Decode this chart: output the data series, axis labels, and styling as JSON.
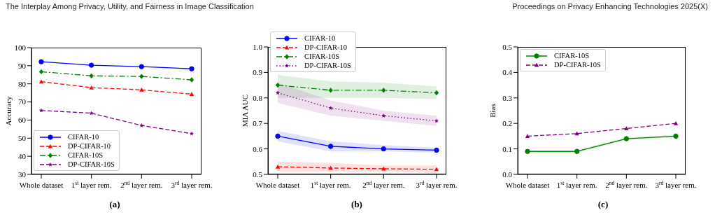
{
  "chart_data": [
    {
      "type": "line",
      "categories": [
        "Whole dataset",
        "1$^{st}$ layer rem.",
        "2$^{nd}$ layer rem.",
        "3$^{rd}$ layer rem."
      ],
      "ylabel": "Accuracy",
      "ylim": [
        30,
        100
      ],
      "yticks": [
        30,
        40,
        50,
        60,
        70,
        80,
        90,
        100
      ],
      "grid": false,
      "legend": "bottom left",
      "annotations": [
        "The Interplay Among Privacy, Utility, and Fairness in Image Classification",
        "(a)"
      ],
      "series": [
        {
          "name": "CIFAR-10",
          "color": "#0000ff",
          "values": [
            92.2,
            90.3,
            89.5,
            88.3
          ],
          "marker": "circle",
          "line_style": "solid"
        },
        {
          "name": "DP-CIFAR-10",
          "color": "#ff0000",
          "values": [
            81.2,
            77.9,
            76.7,
            74.3
          ],
          "marker": "triangle",
          "line_style": "dashed"
        },
        {
          "name": "CIFAR-10S",
          "color": "#008000",
          "values": [
            86.7,
            84.4,
            84.1,
            82.2
          ],
          "marker": "diamond",
          "line_style": "dashdot"
        },
        {
          "name": "DP-CIFAR-10S",
          "color": "#800080",
          "values": [
            65.3,
            63.8,
            57,
            52.5
          ],
          "marker": "star",
          "line_style": "dashed"
        }
      ]
    },
    {
      "type": "line",
      "categories": [
        "Whole dataset",
        "1$^{st}$ layer rem.",
        "2$^{nd}$ layer rem.",
        "3$^{rd}$ layer rem."
      ],
      "ylabel": "MIA AUC",
      "ylim": [
        0.5,
        1.0
      ],
      "yticks": [
        0.5,
        0.6,
        0.7,
        0.8,
        0.9,
        {
          "value": 1.0,
          "label": "1.0"
        }
      ],
      "grid": false,
      "legend": "top left",
      "annotations": [
        "(b)"
      ],
      "series": [
        {
          "name": "CIFAR-10",
          "color": "#0000ff",
          "values": [
            0.65,
            0.61,
            0.6,
            0.595
          ],
          "lower": [
            0.63,
            0.59,
            0.59,
            0.585
          ],
          "upper": [
            0.67,
            0.63,
            0.615,
            0.605
          ],
          "marker": "circle",
          "line_style": "solid"
        },
        {
          "name": "DP-CIFAR-10",
          "color": "#ff0000",
          "values": [
            0.53,
            0.525,
            0.522,
            0.52
          ],
          "lower": [
            0.51,
            0.51,
            0.51,
            0.505
          ],
          "upper": [
            0.55,
            0.545,
            0.535,
            0.535
          ],
          "marker": "triangle",
          "line_style": "dashed"
        },
        {
          "name": "CIFAR-10S",
          "color": "#008000",
          "values": [
            0.85,
            0.83,
            0.83,
            0.82
          ],
          "lower": [
            0.8,
            0.8,
            0.8,
            0.795
          ],
          "upper": [
            0.89,
            0.865,
            0.86,
            0.845
          ],
          "marker": "diamond",
          "line_style": "dashdot"
        },
        {
          "name": "DP-CIFAR-10S",
          "color": "#800080",
          "values": [
            0.82,
            0.76,
            0.73,
            0.71
          ],
          "lower": [
            0.78,
            0.73,
            0.71,
            0.69
          ],
          "upper": [
            0.86,
            0.79,
            0.75,
            0.73
          ],
          "marker": "star",
          "line_style": "dotted"
        }
      ]
    },
    {
      "type": "line",
      "categories": [
        "Whole dataset",
        "1$^{st}$ layer rem.",
        "2$^{nd}$ layer rem.",
        "3$^{rd}$ layer rem."
      ],
      "ylabel": "Bias",
      "ylim": [
        0,
        0.5
      ],
      "yticks": [
        {
          "value": 0,
          "label": "0.0"
        },
        0.1,
        0.2,
        0.3,
        0.4,
        0.5
      ],
      "grid": false,
      "legend": "top left",
      "annotations": [
        "(c)",
        "Proceedings on Privacy Enhancing Technologies 2025(X)"
      ],
      "series": [
        {
          "name": "CIFAR-10S",
          "color": "#008000",
          "values": [
            0.09,
            0.09,
            0.14,
            0.15
          ],
          "lower": [
            0.085,
            0.085,
            0.135,
            0.145
          ],
          "upper": [
            0.095,
            0.095,
            0.145,
            0.155
          ],
          "marker": "circle",
          "line_style": "solid"
        },
        {
          "name": "DP-CIFAR-10S",
          "color": "#800080",
          "values": [
            0.15,
            0.16,
            0.18,
            0.2
          ],
          "marker": "triangle",
          "line_style": "dashed"
        }
      ]
    }
  ]
}
